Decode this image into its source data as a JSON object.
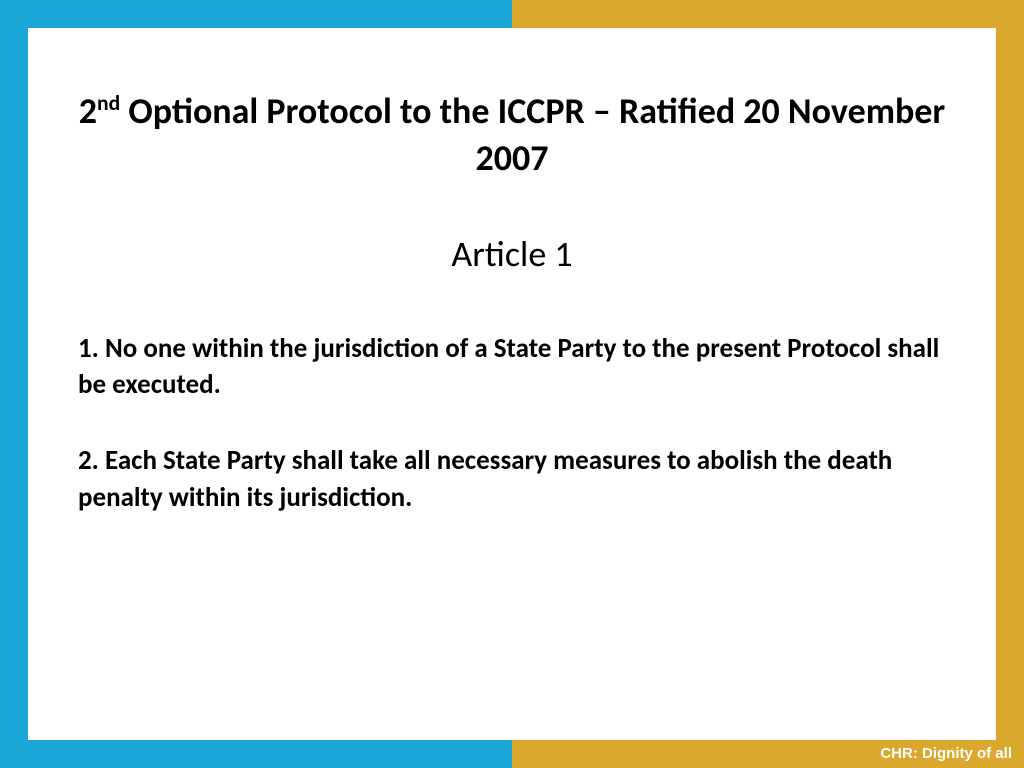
{
  "background": {
    "left_color": "#1ba8d6",
    "right_color": "#d9a82c",
    "content_bg": "#ffffff"
  },
  "title": {
    "prefix": "2",
    "superscript": "nd",
    "text": " Optional Protocol to the ICCPR – Ratified 20 November 2007",
    "fontsize": 36,
    "color": "#000000",
    "weight": "bold"
  },
  "subtitle": {
    "text": "Article 1",
    "fontsize": 36,
    "color": "#000000",
    "weight": "normal"
  },
  "body": {
    "fontsize": 27,
    "color": "#000000",
    "weight": "bold",
    "paragraphs": [
      "1. No one within the jurisdiction of a State Party to the present Protocol shall be executed.",
      "2. Each State Party shall take all necessary measures to abolish the death penalty within its jurisdiction."
    ]
  },
  "footer": {
    "text": "CHR: Dignity of all",
    "fontsize": 15,
    "color": "#ffffff",
    "weight": "bold"
  }
}
